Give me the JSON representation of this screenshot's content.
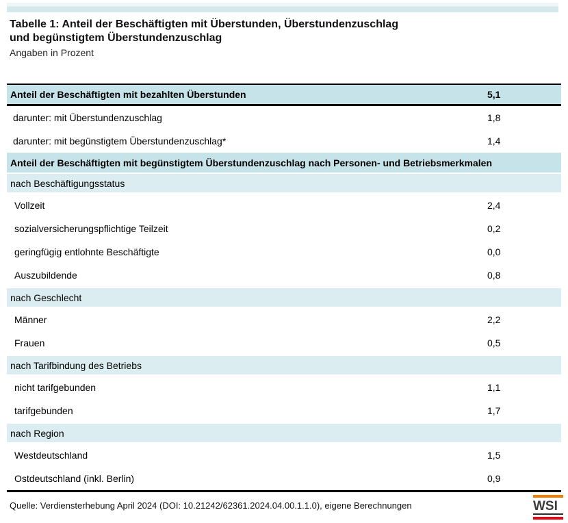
{
  "title": {
    "line1": "Tabelle 1: Anteil der Beschäftigten mit Überstunden, Überstundenzuschlag",
    "line2": "und begünstigtem Überstundenzuschlag",
    "subtitle": "Angaben in Prozent"
  },
  "table": {
    "rows": [
      {
        "type": "header",
        "label": "Anteil der Beschäftigten mit bezahlten Überstunden",
        "value": "5,1"
      },
      {
        "type": "sub",
        "label": "darunter: mit Überstundenzuschlag",
        "value": "1,8"
      },
      {
        "type": "sub",
        "label": "darunter: mit begünstigtem Überstundenzuschlag*",
        "value": "1,4"
      },
      {
        "type": "section",
        "label": "Anteil der Beschäftigten mit begünstigtem Überstundenzuschlag nach Personen- und Betriebsmerkmalen"
      },
      {
        "type": "group",
        "label": "nach Beschäftigungsstatus"
      },
      {
        "type": "data",
        "label": "Vollzeit",
        "value": "2,4"
      },
      {
        "type": "data",
        "label": "sozialversicherungspflichtige Teilzeit",
        "value": "0,2"
      },
      {
        "type": "data",
        "label": "geringfügig entlohnte Beschäftigte",
        "value": "0,0"
      },
      {
        "type": "data",
        "label": "Auszubildende",
        "value": "0,8"
      },
      {
        "type": "group",
        "label": "nach Geschlecht"
      },
      {
        "type": "data",
        "label": "Männer",
        "value": "2,2"
      },
      {
        "type": "data",
        "label": "Frauen",
        "value": "0,5"
      },
      {
        "type": "group",
        "label": "nach Tarifbindung des Betriebs"
      },
      {
        "type": "data",
        "label": "nicht tarifgebunden",
        "value": "1,1"
      },
      {
        "type": "data",
        "label": "tarifgebunden",
        "value": "1,7"
      },
      {
        "type": "group",
        "label": "nach Region"
      },
      {
        "type": "data",
        "label": "Westdeutschland",
        "value": "1,5"
      },
      {
        "type": "data",
        "label": "Ostdeutschland (inkl. Berlin)",
        "value": "0,9"
      }
    ]
  },
  "footer": {
    "source": "Quelle: Verdiensterhebung April 2024 (DOI: 10.21242/62361.2024.04.00.1.1.0), eigene Berechnungen",
    "logo_text": "WSI"
  },
  "colors": {
    "header_blue": "#c6e3e9",
    "group_blue": "#dcedf2",
    "top_bar": "#d5e8ec",
    "logo_orange": "#ee7d00",
    "logo_red": "#e30613"
  }
}
